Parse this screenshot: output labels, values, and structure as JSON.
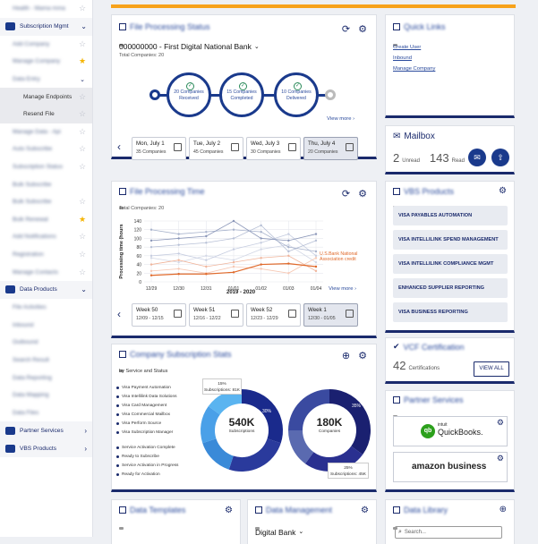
{
  "sidebar": {
    "items": [
      {
        "label": "Health - Mama mma",
        "type": "row",
        "star": "off"
      },
      {
        "label": "Subscription Mgmt",
        "type": "section"
      },
      {
        "label": "Add Company",
        "type": "row",
        "star": "off"
      },
      {
        "label": "Manage Company",
        "type": "row",
        "star": "on"
      },
      {
        "label": "Data Entry",
        "type": "row",
        "star": "none"
      },
      {
        "label": "Manage Endpoints",
        "type": "sel",
        "star": "off"
      },
      {
        "label": "Resend File",
        "type": "sel",
        "star": "off"
      },
      {
        "label": "Manage Data - Api",
        "type": "row",
        "star": "off"
      },
      {
        "label": "Auto Subscribe",
        "type": "row",
        "star": "off"
      },
      {
        "label": "Subscription Status",
        "type": "row",
        "star": "off"
      },
      {
        "label": "Bulk Subscribe",
        "type": "row",
        "star": "none"
      },
      {
        "label": "Bulk Subscribe",
        "type": "row",
        "star": "off"
      },
      {
        "label": "Bulk Renewal",
        "type": "row",
        "star": "on"
      },
      {
        "label": "Add Notifications",
        "type": "row",
        "star": "off"
      },
      {
        "label": "Registration",
        "type": "row",
        "star": "off"
      },
      {
        "label": "Manage Contacts",
        "type": "row",
        "star": "off"
      },
      {
        "label": "Data Products",
        "type": "section"
      },
      {
        "label": "File Activities",
        "type": "row",
        "star": "none"
      },
      {
        "label": "Inbound",
        "type": "row",
        "star": "none"
      },
      {
        "label": "Outbound",
        "type": "row",
        "star": "none"
      },
      {
        "label": "Search Result",
        "type": "row",
        "star": "none"
      },
      {
        "label": "Data Reporting",
        "type": "row",
        "star": "none"
      },
      {
        "label": "Data Mapping",
        "type": "row",
        "star": "none"
      },
      {
        "label": "Data Files",
        "type": "row",
        "star": "none"
      },
      {
        "label": "Partner Services",
        "type": "section-closed"
      },
      {
        "label": "VBS Products",
        "type": "section-closed"
      }
    ]
  },
  "file_processing": {
    "title": "File Processing Status",
    "bank": "000000000 - First Digital National Bank",
    "total": "Total Companies: 20",
    "steps": [
      {
        "count": "20 Companies",
        "label": "Received"
      },
      {
        "count": "15 Companies",
        "label": "Completed"
      },
      {
        "count": "10 Companies",
        "label": "Delivered"
      }
    ],
    "view_more": "View more",
    "days": [
      {
        "day": "Mon, July 1",
        "companies": "35 Companies"
      },
      {
        "day": "Tue, July 2",
        "companies": "45 Companies"
      },
      {
        "day": "Wed, July 3",
        "companies": "30 Companies"
      },
      {
        "day": "Thu, July 4",
        "companies": "20 Companies"
      }
    ]
  },
  "quick_links": {
    "title": "Quick Links",
    "links": [
      "Create User",
      "Inbound",
      "Manage Company"
    ]
  },
  "mailbox": {
    "title": "Mailbox",
    "unread_count": "2",
    "unread_label": "Unread",
    "read_count": "143",
    "read_label": "Read"
  },
  "processing_time": {
    "title": "File Processing Time",
    "total": "Total Companies: 20",
    "view_more": "View more",
    "annotation": "U.S.Bank National Association credit",
    "weeks": [
      {
        "week": "Week 50",
        "range": "12/09 - 12/15"
      },
      {
        "week": "Week 51",
        "range": "12/16 - 12/22"
      },
      {
        "week": "Week 52",
        "range": "12/23 - 12/29"
      },
      {
        "week": "Week 1",
        "range": "12/30 - 01/05"
      }
    ]
  },
  "chart_data": {
    "type": "line",
    "title": "",
    "xlabel": "2019 - 2020",
    "ylabel": "Processing time (hours",
    "x": [
      "12/29",
      "12/30",
      "12/31",
      "01/01",
      "01/02",
      "01/03",
      "01/04"
    ],
    "yticks": [
      "0",
      "20",
      "40",
      "60",
      "80",
      "100",
      "120",
      "140"
    ],
    "ylim": [
      0,
      140
    ],
    "series": [
      {
        "name": "U.S.Bank National Association credit",
        "color": "#e0692a",
        "values": [
          15,
          18,
          18,
          22,
          40,
          42,
          35
        ]
      },
      {
        "values": [
          95,
          100,
          105,
          140,
          100,
          95,
          110
        ],
        "color": "#8a96b8"
      },
      {
        "values": [
          120,
          110,
          115,
          120,
          115,
          80,
          70
        ],
        "color": "#a8b3cc"
      },
      {
        "values": [
          80,
          85,
          90,
          100,
          130,
          70,
          95
        ],
        "color": "#b7c0d6"
      },
      {
        "values": [
          60,
          65,
          50,
          75,
          90,
          110,
          60
        ],
        "color": "#c6cde0"
      },
      {
        "values": [
          40,
          50,
          35,
          45,
          55,
          60,
          25
        ],
        "color": "#f0b49a"
      },
      {
        "values": [
          25,
          30,
          20,
          35,
          30,
          20,
          55
        ],
        "color": "#f6c8b4"
      },
      {
        "values": [
          55,
          45,
          60,
          50,
          75,
          85,
          45
        ],
        "color": "#d3d8e6"
      }
    ],
    "grid": true
  },
  "vbs_products": {
    "title": "VBS Products",
    "items": [
      "VISA PAYABLES AUTOMATION",
      "VISA INTELLILINK SPEND MANAGEMENT",
      "VISA INTELLILINK COMPLIANCE MGMT",
      "ENHANCED SUPPLIER REPORTING",
      "VISA BUSINESS REPORTING"
    ]
  },
  "subscription": {
    "title": "Company Subscription Stats",
    "subtitle": "by Service and Status",
    "services": [
      "Visa Payment Automation",
      "Visa Intellilink Data Solutions",
      "Visa Card Management",
      "Visa Commercial Mailbox",
      "Visa Perform Source",
      "Visa Subscription Manager"
    ],
    "statuses": [
      "Service Activation Complete",
      "Ready to Subscribe",
      "Service Activation in Progress",
      "Ready for Activation"
    ],
    "donut1": {
      "value": "540K",
      "label": "Subscriptions",
      "tip_pct": "15%",
      "tip_text": "Subscriptions: 81K",
      "pct_right": "30%"
    },
    "donut2": {
      "value": "180K",
      "label": "Companies",
      "tip_pct": "25%",
      "tip_text": "Subscriptions: 45K",
      "pct_right": "35%"
    }
  },
  "certifications": {
    "title": "VCF Certification",
    "count": "42",
    "label": "Certifications",
    "button": "VIEW ALL"
  },
  "partner_services": {
    "title": "Partner Services",
    "intuit": "intuit",
    "quickbooks": "QuickBooks.",
    "amazon": "amazon business"
  },
  "bottom": {
    "c1_title": "Data Templates",
    "c2_title": "Data Management",
    "c2_select": "Digital Bank",
    "c3_title": "Data Library",
    "search_placeholder": "Search..."
  },
  "colors": {
    "brand": "#1a2a6c",
    "accent": "#f7a21b",
    "orange": "#e0692a"
  }
}
